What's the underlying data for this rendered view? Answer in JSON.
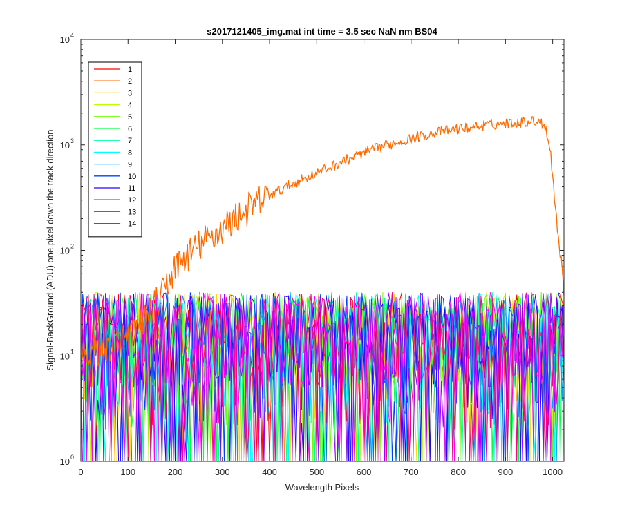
{
  "chart_data": {
    "type": "line",
    "title": "s2017121405_img.mat int time = 3.5 sec  NaN nm BS04",
    "xlabel": "Wavelength Pixels",
    "ylabel": "Signal-BackGround (ADU) one pixel down the track direction",
    "xlim": [
      0,
      1024
    ],
    "ylim": [
      1,
      10000
    ],
    "yscale": "log",
    "grid": false,
    "legend_position": "top-left",
    "x_ticks": [
      0,
      100,
      200,
      300,
      400,
      500,
      600,
      700,
      800,
      900,
      1000
    ],
    "y_ticks": [
      {
        "base": "10",
        "exp": "0",
        "value": 1
      },
      {
        "base": "10",
        "exp": "1",
        "value": 10
      },
      {
        "base": "10",
        "exp": "2",
        "value": 100
      },
      {
        "base": "10",
        "exp": "3",
        "value": 1000
      },
      {
        "base": "10",
        "exp": "4",
        "value": 10000
      }
    ],
    "series": [
      {
        "name": "1",
        "color": "#ff0000",
        "kind": "noise"
      },
      {
        "name": "2",
        "color": "#ff6a00",
        "kind": "signal",
        "x": [
          0,
          50,
          100,
          130,
          150,
          170,
          200,
          250,
          300,
          350,
          400,
          450,
          500,
          550,
          600,
          650,
          700,
          750,
          800,
          850,
          900,
          940,
          970,
          985,
          995,
          1005,
          1015,
          1020,
          1024
        ],
        "y": [
          10,
          12,
          15,
          20,
          28,
          35,
          70,
          110,
          160,
          240,
          330,
          430,
          540,
          680,
          840,
          1000,
          1150,
          1300,
          1420,
          1520,
          1600,
          1650,
          1700,
          1500,
          900,
          280,
          100,
          70,
          40
        ]
      },
      {
        "name": "3",
        "color": "#ffd400",
        "kind": "noise"
      },
      {
        "name": "4",
        "color": "#bfff00",
        "kind": "noise"
      },
      {
        "name": "5",
        "color": "#6aff00",
        "kind": "noise"
      },
      {
        "name": "6",
        "color": "#00ff40",
        "kind": "noise"
      },
      {
        "name": "7",
        "color": "#00ffa0",
        "kind": "noise"
      },
      {
        "name": "8",
        "color": "#00ffff",
        "kind": "noise"
      },
      {
        "name": "9",
        "color": "#00a0ff",
        "kind": "noise"
      },
      {
        "name": "10",
        "color": "#0040ff",
        "kind": "noise"
      },
      {
        "name": "11",
        "color": "#2a00ff",
        "kind": "noise"
      },
      {
        "name": "12",
        "color": "#a000ff",
        "kind": "noise"
      },
      {
        "name": "13",
        "color": "#ff00ff",
        "kind": "noise"
      },
      {
        "name": "14",
        "color": "#ff0080",
        "kind": "noise"
      }
    ],
    "noise_range": [
      1,
      40
    ]
  }
}
